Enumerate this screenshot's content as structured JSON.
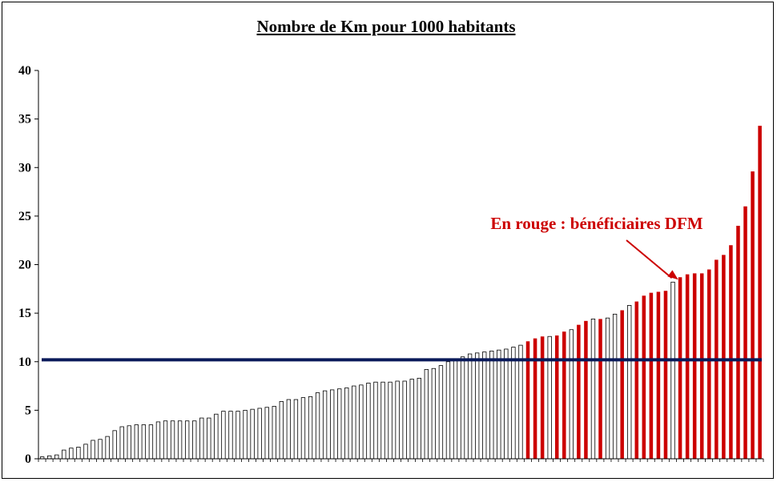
{
  "chart_data": {
    "type": "bar",
    "title": "Nombre de Km pour 1000 habitants",
    "xlabel": "",
    "ylabel": "",
    "ylim": [
      0,
      40
    ],
    "yticks": [
      "0",
      "5",
      "10",
      "15",
      "20",
      "25",
      "30",
      "35",
      "40"
    ],
    "grid": false,
    "reference_line": {
      "value": 10.2,
      "color": "#0a1a5a"
    },
    "annotation": {
      "text": "En rouge : bénéficiaires DFM",
      "target_index": 88,
      "color": "#cc0000"
    },
    "colors": {
      "default_bar": "#ffffff",
      "default_bar_stroke": "#000000",
      "highlight_bar": "#cc0000",
      "axis": "#000000"
    },
    "values": [
      0.2,
      0.3,
      0.4,
      0.9,
      1.1,
      1.2,
      1.5,
      1.9,
      2.0,
      2.3,
      2.9,
      3.3,
      3.4,
      3.5,
      3.5,
      3.5,
      3.8,
      3.9,
      3.9,
      3.9,
      3.9,
      3.9,
      4.2,
      4.2,
      4.6,
      4.9,
      4.9,
      4.9,
      5.0,
      5.1,
      5.2,
      5.3,
      5.4,
      5.9,
      6.1,
      6.1,
      6.3,
      6.4,
      6.8,
      7.0,
      7.1,
      7.2,
      7.3,
      7.5,
      7.6,
      7.8,
      7.9,
      7.9,
      7.9,
      8.0,
      8.0,
      8.2,
      8.3,
      9.2,
      9.3,
      9.6,
      10.0,
      10.1,
      10.5,
      10.8,
      10.9,
      11.0,
      11.1,
      11.2,
      11.3,
      11.5,
      11.7,
      12.1,
      12.4,
      12.6,
      12.6,
      12.7,
      13.1,
      13.3,
      13.8,
      14.2,
      14.4,
      14.4,
      14.5,
      14.9,
      15.3,
      15.8,
      16.2,
      16.8,
      17.1,
      17.2,
      17.3,
      18.2,
      18.7,
      19.0,
      19.1,
      19.1,
      19.5,
      20.5,
      21.0,
      22.0,
      24.0,
      26.0,
      29.6,
      34.3
    ],
    "highlighted": [
      67,
      68,
      69,
      71,
      72,
      74,
      75,
      77,
      80,
      82,
      83,
      84,
      85,
      86,
      88,
      89,
      90,
      91,
      92,
      93,
      94,
      95,
      96,
      97,
      98,
      99
    ]
  }
}
